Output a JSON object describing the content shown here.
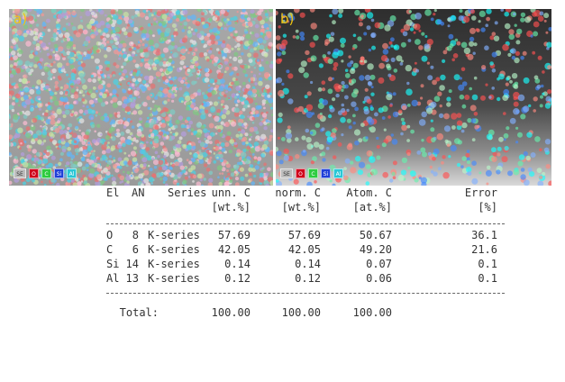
{
  "panels": [
    {
      "label": "a)",
      "legend": [
        {
          "text": "SE",
          "color": "#bdbdbd"
        },
        {
          "text": "O",
          "color": "#d0021b"
        },
        {
          "text": "C",
          "color": "#2ecc40"
        },
        {
          "text": "Si",
          "color": "#1f3fd8"
        },
        {
          "text": "Al",
          "color": "#29c7d6"
        }
      ]
    },
    {
      "label": "b)",
      "legend": [
        {
          "text": "SE",
          "color": "#bdbdbd"
        },
        {
          "text": "O",
          "color": "#d0021b"
        },
        {
          "text": "C",
          "color": "#2ecc40"
        },
        {
          "text": "Si",
          "color": "#1f3fd8"
        },
        {
          "text": "Al",
          "color": "#29c7d6"
        }
      ]
    }
  ],
  "table": {
    "headers": [
      [
        "El",
        "AN",
        "Series",
        "unn. C",
        "norm. C",
        "Atom. C",
        "Error"
      ],
      [
        "",
        "",
        "",
        "[wt.%]",
        "[wt.%]",
        "[at.%]",
        "[%]"
      ]
    ],
    "rows": [
      [
        "O",
        "8",
        "K-series",
        "57.69",
        "57.69",
        "50.67",
        "36.1"
      ],
      [
        "C",
        "6",
        "K-series",
        "42.05",
        "42.05",
        "49.20",
        "21.6"
      ],
      [
        "Si",
        "14",
        "K-series",
        "0.14",
        "0.14",
        "0.07",
        "0.1"
      ],
      [
        "Al",
        "13",
        "K-series",
        "0.12",
        "0.12",
        "0.06",
        "0.1"
      ]
    ],
    "total": [
      "Total:",
      "100.00",
      "100.00",
      "100.00"
    ]
  }
}
